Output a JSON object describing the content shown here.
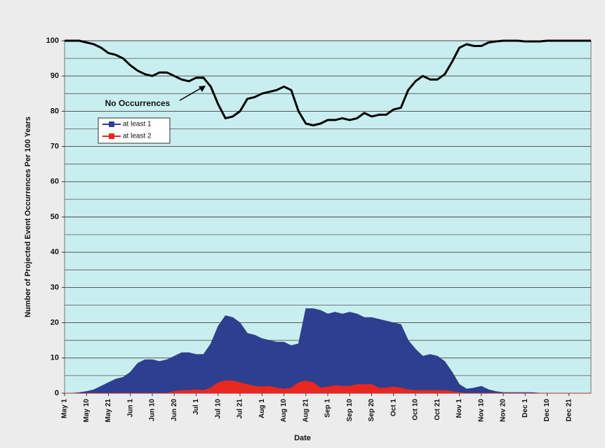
{
  "chart_data": {
    "type": "area",
    "x_label": "Date",
    "y_label": "Number of Projected Event Occurrences Per 100 Years",
    "categories": [
      "May 1",
      null,
      null,
      "May 10",
      null,
      null,
      "May 21",
      null,
      null,
      "Jun 1",
      null,
      null,
      "Jun 10",
      null,
      null,
      "Jun 20",
      null,
      null,
      "Jul 1",
      null,
      null,
      "Jul 10",
      null,
      null,
      "Jul 21",
      null,
      null,
      "Aug 1",
      null,
      null,
      "Aug 10",
      null,
      null,
      "Aug 21",
      null,
      null,
      "Sep 1",
      null,
      null,
      "Sep 10",
      null,
      null,
      "Sep 20",
      null,
      null,
      "Oct 1",
      null,
      null,
      "Oct 10",
      null,
      null,
      "Oct 21",
      null,
      null,
      "Nov 1",
      null,
      null,
      "Nov 10",
      null,
      null,
      "Nov 20",
      null,
      null,
      "Dec 1",
      null,
      null,
      "Dec 10",
      null,
      null,
      "Dec 21",
      null,
      null,
      null
    ],
    "series": [
      {
        "name": "No Occurrences",
        "color": "#000000",
        "style": "line",
        "values": [
          100,
          100,
          100,
          99.5,
          99,
          98,
          96.5,
          96,
          95,
          93,
          91.5,
          90.5,
          90,
          91,
          91,
          90,
          89,
          88.5,
          89.5,
          89.5,
          87,
          82,
          78,
          78.5,
          80,
          83.5,
          84,
          85,
          85.5,
          86,
          87,
          86,
          80,
          76.5,
          76,
          76.5,
          77.5,
          77.5,
          78,
          77.5,
          78,
          79.5,
          78.5,
          79,
          79,
          80.5,
          81,
          86,
          88.5,
          90,
          89,
          89,
          90.5,
          94,
          98,
          99,
          98.5,
          98.5,
          99.5,
          99.8,
          100,
          100,
          100,
          99.8,
          99.8,
          99.8,
          100,
          100,
          100,
          100,
          100,
          100,
          100
        ]
      },
      {
        "name": "at least 1",
        "color": "#2e3f8f",
        "style": "area",
        "values": [
          0,
          0,
          0.2,
          0.5,
          1,
          2,
          3,
          4,
          4.5,
          6,
          8.5,
          9.5,
          9.5,
          9,
          9.5,
          10.5,
          11.5,
          11.5,
          11,
          11,
          14,
          19,
          22,
          21.5,
          20,
          17,
          16.5,
          15.5,
          15,
          14.5,
          14.5,
          13.5,
          14,
          24,
          24,
          23.5,
          22.5,
          23,
          22.5,
          23,
          22.5,
          21.5,
          21.5,
          21,
          20.5,
          20,
          19.5,
          15,
          12.5,
          10.5,
          11,
          10.5,
          9,
          6,
          2.5,
          1.2,
          1.5,
          2,
          1,
          0.5,
          0.2,
          0.2,
          0.2,
          0.2,
          0.2,
          0,
          0,
          0,
          0,
          0,
          0,
          0,
          0
        ]
      },
      {
        "name": "at least 2",
        "color": "#e8281e",
        "style": "area",
        "values": [
          0,
          0,
          0,
          0,
          0,
          0,
          0,
          0,
          0,
          0,
          0,
          0,
          0,
          0,
          0,
          0.5,
          0.8,
          0.8,
          1,
          0.8,
          1.5,
          3,
          3.5,
          3.5,
          3,
          2.5,
          2,
          1.8,
          2,
          1.5,
          1.2,
          1.5,
          3,
          3.5,
          3,
          1.5,
          1.8,
          2.2,
          2,
          2,
          2.5,
          2.5,
          2.5,
          1.5,
          1.5,
          1.8,
          1.5,
          1,
          0.8,
          0.8,
          0.8,
          0.8,
          0.8,
          0.5,
          0.2,
          0,
          0,
          0,
          0,
          0,
          0,
          0,
          0,
          0,
          0,
          0,
          0,
          0,
          0,
          0,
          0,
          0,
          0
        ]
      }
    ],
    "ylim": [
      0,
      100
    ],
    "yticks": [
      0,
      10,
      20,
      30,
      40,
      50,
      60,
      70,
      80,
      90,
      100
    ],
    "minor_grid": [
      5,
      15,
      25,
      35,
      45,
      55,
      65,
      75,
      85,
      95
    ],
    "grid": true,
    "plot_background": "#c9eef0"
  }
}
